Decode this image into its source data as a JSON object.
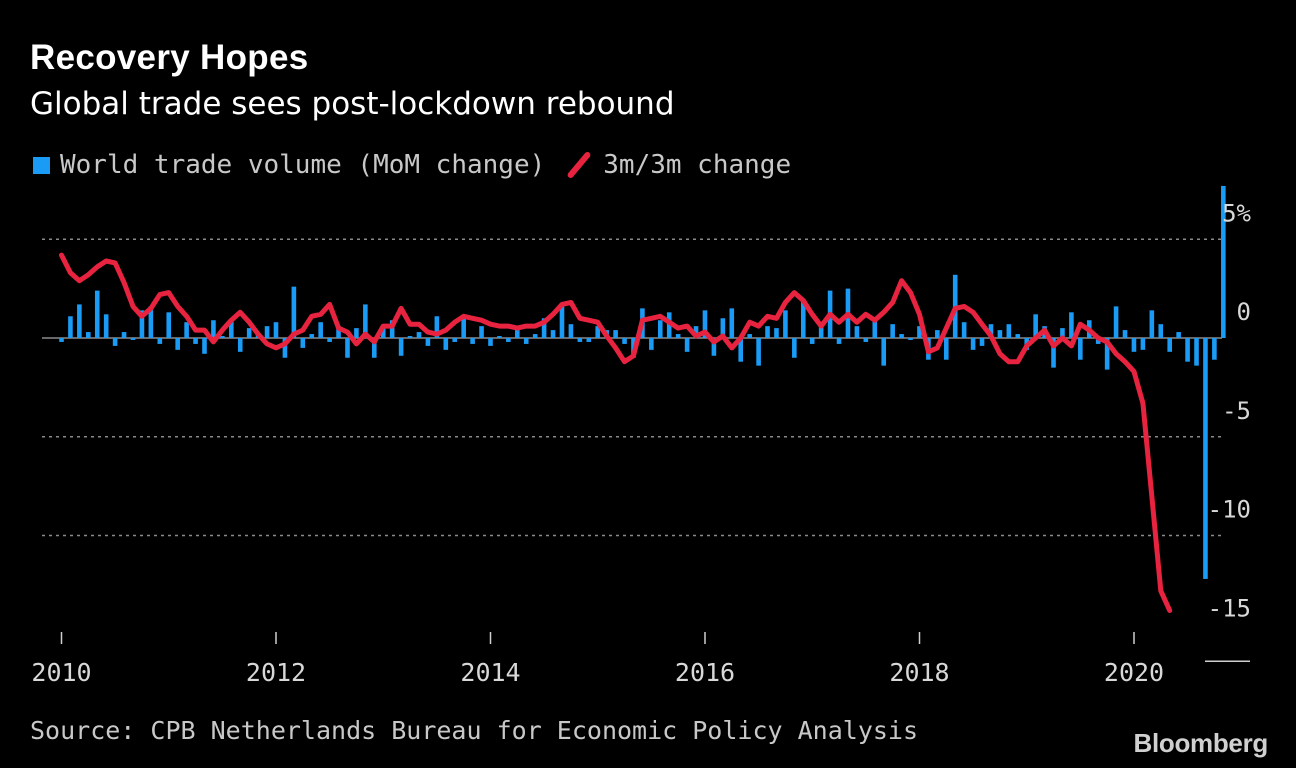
{
  "header": {
    "title": "Recovery Hopes",
    "subtitle": "Global trade sees post-lockdown rebound"
  },
  "legend": {
    "bar_label": "World trade volume (MoM change)",
    "line_label": "3m/3m change"
  },
  "footer": {
    "source": "Source: CPB Netherlands Bureau for Economic Policy Analysis",
    "brand": "Bloomberg"
  },
  "colors": {
    "bar": "#1a9bf5",
    "line": "#e8233f",
    "background": "#000000",
    "grid": "#8a8a8a"
  },
  "chart_data": {
    "type": "bar+line",
    "title": "Recovery Hopes",
    "subtitle": "Global trade sees post-lockdown rebound",
    "xlabel": "",
    "ylabel": "",
    "x_start": 2010.0,
    "x_step_years": 0.08333,
    "xlim": [
      2010,
      2020.5
    ],
    "ylim": [
      -15,
      7.5
    ],
    "y_ticks": [
      5,
      0,
      -5,
      -10,
      -15
    ],
    "y_tick_labels": [
      "5%",
      "0",
      "-5",
      "-10",
      "-15"
    ],
    "x_ticks": [
      2010,
      2012,
      2014,
      2016,
      2018,
      2020
    ],
    "x_tick_labels": [
      "2010",
      "2012",
      "2014",
      "2016",
      "2018",
      "2020"
    ],
    "grid": true,
    "series": [
      {
        "name": "World trade volume (MoM change)",
        "type": "bar",
        "values": [
          -0.2,
          1.1,
          1.7,
          0.3,
          2.4,
          1.2,
          -0.4,
          0.3,
          -0.1,
          1.4,
          1.6,
          -0.3,
          1.3,
          -0.6,
          0.8,
          -0.3,
          -0.8,
          0.9,
          0.1,
          0.9,
          -0.7,
          0.5,
          0.2,
          0.6,
          0.8,
          -1.0,
          2.6,
          -0.5,
          0.2,
          0.8,
          -0.2,
          0.6,
          -1.0,
          0.5,
          1.7,
          -1.0,
          0.6,
          0.9,
          -0.9,
          0.1,
          0.3,
          -0.4,
          1.1,
          -0.6,
          -0.2,
          1.1,
          -0.3,
          0.6,
          -0.4,
          0.1,
          -0.2,
          0.5,
          -0.3,
          0.2,
          1.0,
          0.4,
          1.7,
          0.7,
          -0.2,
          -0.2,
          0.6,
          0.4,
          0.4,
          -0.3,
          -1.0,
          1.5,
          -0.6,
          0.9,
          1.3,
          0.2,
          -0.7,
          0.6,
          1.4,
          -0.9,
          1.0,
          1.5,
          -1.2,
          0.2,
          -1.4,
          0.6,
          0.5,
          1.4,
          -1.0,
          1.9,
          -0.3,
          0.7,
          2.4,
          -0.3,
          2.5,
          0.6,
          -0.2,
          1.0,
          -1.4,
          0.7,
          0.2,
          -0.1,
          0.6,
          -1.1,
          0.4,
          -1.1,
          3.2,
          0.8,
          -0.6,
          -0.4,
          0.7,
          0.4,
          0.7,
          0.2,
          -0.6,
          1.2,
          0.6,
          -1.5,
          0.5,
          1.3,
          -1.1,
          0.9,
          -0.3,
          -1.6,
          1.6,
          0.4,
          -0.7,
          -0.6,
          1.4,
          0.7,
          -0.7,
          0.3,
          -1.2,
          -1.4,
          -12.2,
          -1.1,
          7.7
        ]
      },
      {
        "name": "3m/3m change",
        "type": "line",
        "values": [
          4.2,
          3.3,
          2.9,
          3.2,
          3.6,
          3.9,
          3.8,
          2.8,
          1.6,
          1.1,
          1.5,
          2.2,
          2.3,
          1.6,
          1.1,
          0.4,
          0.4,
          -0.2,
          0.4,
          0.9,
          1.3,
          0.8,
          0.2,
          -0.3,
          -0.5,
          -0.3,
          0.2,
          0.4,
          1.1,
          1.2,
          1.7,
          0.5,
          0.3,
          -0.3,
          0.2,
          -0.2,
          0.6,
          0.6,
          1.5,
          0.7,
          0.7,
          0.3,
          0.2,
          0.4,
          0.8,
          1.1,
          1.0,
          0.9,
          0.7,
          0.6,
          0.6,
          0.5,
          0.6,
          0.6,
          0.8,
          1.2,
          1.7,
          1.8,
          1.0,
          0.9,
          0.8,
          0.1,
          -0.5,
          -1.2,
          -0.9,
          0.9,
          1.0,
          1.1,
          0.8,
          0.5,
          0.6,
          0.1,
          0.3,
          -0.2,
          0.1,
          -0.5,
          0.0,
          0.8,
          0.6,
          1.1,
          1.0,
          1.8,
          2.3,
          1.9,
          1.2,
          0.6,
          1.2,
          0.8,
          1.2,
          0.8,
          1.2,
          0.9,
          1.3,
          1.8,
          2.9,
          2.3,
          1.2,
          -0.7,
          -0.5,
          0.5,
          1.5,
          1.6,
          1.3,
          0.7,
          0.1,
          -0.8,
          -1.2,
          -1.2,
          -0.4,
          0.0,
          0.4,
          -0.4,
          0.0,
          -0.4,
          0.7,
          0.4,
          0.0,
          -0.2,
          -0.8,
          -1.2,
          -1.7,
          -3.3,
          -8.0,
          -12.8,
          -13.8
        ]
      }
    ]
  }
}
